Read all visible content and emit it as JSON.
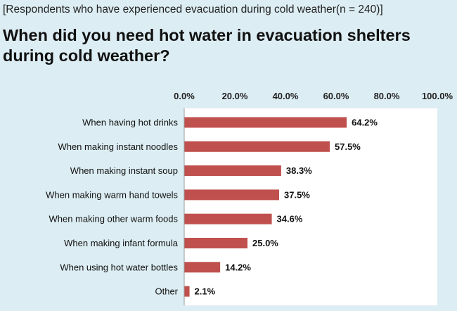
{
  "header": {
    "subtitle": "[Respondents who have experienced evacuation during cold weather(n = 240)]",
    "title": "When did you need hot water in evacuation shelters during cold weather?"
  },
  "chart_data": {
    "type": "bar",
    "orientation": "horizontal",
    "title": "When did you need hot water in evacuation shelters during cold weather?",
    "subtitle": "[Respondents who have experienced evacuation during cold weather(n = 240)]",
    "categories": [
      "When having hot drinks",
      "When making instant noodles",
      "When making instant soup",
      "When making warm hand towels",
      "When making other warm foods",
      "When making infant formula",
      "When using hot water bottles",
      "Other"
    ],
    "values": [
      64.2,
      57.5,
      38.3,
      37.5,
      34.6,
      25.0,
      14.2,
      2.1
    ],
    "value_labels": [
      "64.2%",
      "57.5%",
      "38.3%",
      "37.5%",
      "34.6%",
      "25.0%",
      "14.2%",
      "2.1%"
    ],
    "xlim": [
      0,
      100
    ],
    "xticks": [
      "0.0%",
      "20.0%",
      "40.0%",
      "60.0%",
      "80.0%",
      "100.0%"
    ],
    "xtick_values": [
      0,
      20,
      40,
      60,
      80,
      100
    ],
    "grid": false,
    "bar_color": "#c0504d",
    "plot_background": "#ffffff"
  }
}
